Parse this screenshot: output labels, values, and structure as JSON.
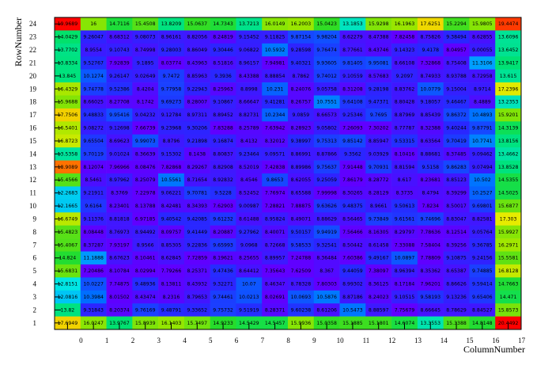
{
  "chart_data": {
    "type": "heatmap",
    "xlabel": "ColumnNumber",
    "ylabel": "RowNumber",
    "x_ticks": [
      "0",
      "1",
      "2",
      "3",
      "4",
      "5",
      "6",
      "7",
      "8",
      "9",
      "10",
      "11",
      "12",
      "13",
      "14",
      "15",
      "16",
      "17"
    ],
    "y_ticks": [
      "1",
      "2",
      "3",
      "4",
      "5",
      "6",
      "7",
      "8",
      "9",
      "10",
      "11",
      "12",
      "13",
      "14",
      "15",
      "16",
      "17",
      "18",
      "19",
      "20",
      "21",
      "22",
      "23",
      "24"
    ],
    "xlim": [
      -0.5,
      17.5
    ],
    "ylim": [
      0.5,
      24.5
    ],
    "color_min": 8.0,
    "color_max": 20.0,
    "rows": [
      {
        "row": 24,
        "values": [
          "19.9689",
          "16",
          "14.7116",
          "15.4508",
          "13.8209",
          "15.0637",
          "14.7343",
          "13.7213",
          "16.0149",
          "16.2003",
          "15.0423",
          "13.1853",
          "15.9298",
          "16.1963",
          "17.6251",
          "15.2294",
          "15.9805",
          "19.4474"
        ]
      },
      {
        "row": 23,
        "values": [
          "14.0429",
          "9.26047",
          "8.68312",
          "9.08073",
          "8.96161",
          "8.82056",
          "8.24819",
          "9.15452",
          "9.11825",
          "9.87154",
          "9.98204",
          "8.62279",
          "8.47388",
          "7.82458",
          "8.75826",
          "9.38494",
          "8.62855",
          "13.6096"
        ]
      },
      {
        "row": 22,
        "values": [
          "13.7702",
          "8.9554",
          "9.10743",
          "8.74998",
          "9.28003",
          "8.86049",
          "9.30446",
          "9.06822",
          "10.5932",
          "9.28598",
          "9.76474",
          "8.77661",
          "8.43746",
          "9.14323",
          "9.4178",
          "8.04957",
          "9.00055",
          "13.6452"
        ]
      },
      {
        "row": 21,
        "values": [
          "13.8334",
          "9.52767",
          "7.92839",
          "9.1895",
          "8.03774",
          "8.43963",
          "8.51816",
          "8.96157",
          "7.94981",
          "9.40321",
          "9.93605",
          "9.81405",
          "9.95081",
          "8.66108",
          "7.32868",
          "8.75408",
          "11.3106",
          "13.9417"
        ]
      },
      {
        "row": 20,
        "values": [
          "13.845",
          "10.1274",
          "9.26147",
          "9.02649",
          "9.7472",
          "8.85963",
          "9.3936",
          "8.43388",
          "8.88854",
          "8.7862",
          "9.74012",
          "9.10559",
          "8.57683",
          "9.2097",
          "8.74933",
          "8.93788",
          "8.72958",
          "13.615"
        ]
      },
      {
        "row": 19,
        "values": [
          "16.4329",
          "9.74778",
          "9.52386",
          "8.4204",
          "9.77958",
          "9.22943",
          "8.25963",
          "8.8998",
          "10.231",
          "8.24076",
          "9.05758",
          "8.31208",
          "9.28198",
          "8.83762",
          "10.0779",
          "9.15004",
          "8.9714",
          "17.2396"
        ]
      },
      {
        "row": 18,
        "values": [
          "15.9688",
          "8.66025",
          "8.27708",
          "8.1742",
          "9.69273",
          "8.28007",
          "9.10867",
          "8.66647",
          "9.41281",
          "8.26757",
          "10.7551",
          "9.64108",
          "9.47371",
          "8.80428",
          "9.18057",
          "9.46467",
          "8.4889",
          "13.2353"
        ]
      },
      {
        "row": 17,
        "values": [
          "17.7506",
          "9.48833",
          "9.95416",
          "9.04232",
          "9.12784",
          "8.97311",
          "8.89452",
          "8.82731",
          "10.2344",
          "9.0859",
          "8.66573",
          "9.25346",
          "9.7695",
          "8.87969",
          "8.85439",
          "9.86372",
          "10.4893",
          "15.9201"
        ]
      },
      {
        "row": 16,
        "values": [
          "16.5401",
          "9.08272",
          "9.12698",
          "7.66739",
          "9.23968",
          "9.30206",
          "7.83288",
          "8.25789",
          "7.63942",
          "8.28923",
          "9.05802",
          "7.26093",
          "7.30202",
          "8.77787",
          "8.32388",
          "9.40244",
          "9.87791",
          "14.3139"
        ]
      },
      {
        "row": 15,
        "values": [
          "16.8723",
          "9.65504",
          "8.69623",
          "9.99073",
          "8.8796",
          "9.21898",
          "9.16874",
          "8.4132",
          "8.32012",
          "9.38997",
          "9.75313",
          "9.85142",
          "8.85947",
          "9.53315",
          "8.63564",
          "9.70419",
          "10.7741",
          "13.8156"
        ]
      },
      {
        "row": 14,
        "values": [
          "13.5358",
          "9.70119",
          "9.01024",
          "8.36639",
          "9.15302",
          "8.1438",
          "8.80837",
          "9.23464",
          "9.09571",
          "8.86991",
          "8.87866",
          "9.3562",
          "9.03929",
          "8.10416",
          "8.88681",
          "8.37485",
          "9.09462",
          "13.4662"
        ]
      },
      {
        "row": 13,
        "values": [
          "18.9089",
          "8.12074",
          "7.96966",
          "8.08476",
          "7.82868",
          "8.29267",
          "8.82908",
          "8.52019",
          "7.42838",
          "8.89986",
          "9.75637",
          "7.91448",
          "9.70931",
          "8.81594",
          "9.5158",
          "9.86283",
          "9.07494",
          "13.8528"
        ]
      },
      {
        "row": 12,
        "values": [
          "15.4566",
          "8.5461",
          "8.97962",
          "8.25079",
          "10.5561",
          "8.71654",
          "8.92832",
          "8.4546",
          "9.8653",
          "8.62055",
          "9.25059",
          "7.86179",
          "8.28772",
          "8.617",
          "8.23681",
          "8.85123",
          "10.502",
          "14.5355"
        ]
      },
      {
        "row": 11,
        "values": [
          "12.2683",
          "9.21911",
          "8.3769",
          "7.22978",
          "9.06221",
          "9.70781",
          "9.5228",
          "8.52452",
          "7.76974",
          "8.65588",
          "7.99998",
          "8.30265",
          "8.28129",
          "8.3735",
          "8.4794",
          "8.39299",
          "10.2527",
          "14.5025"
        ]
      },
      {
        "row": 10,
        "values": [
          "12.1665",
          "9.6164",
          "8.23401",
          "8.13788",
          "8.42481",
          "8.34393",
          "7.62903",
          "9.00987",
          "7.28821",
          "7.88875",
          "9.63626",
          "9.48375",
          "8.9661",
          "9.50613",
          "7.8234",
          "8.50017",
          "9.69801",
          "15.6877"
        ]
      },
      {
        "row": 9,
        "values": [
          "16.6749",
          "9.11376",
          "8.81818",
          "6.97185",
          "9.40542",
          "9.42085",
          "9.61232",
          "8.61488",
          "8.95824",
          "8.49071",
          "8.88629",
          "8.56465",
          "9.73849",
          "9.61561",
          "9.74696",
          "8.83047",
          "8.82581",
          "17.303"
        ]
      },
      {
        "row": 8,
        "values": [
          "15.4823",
          "8.08448",
          "8.76973",
          "8.94492",
          "8.09757",
          "9.41449",
          "8.20887",
          "9.27962",
          "8.40071",
          "9.50157",
          "9.94919",
          "7.56466",
          "8.16305",
          "8.29797",
          "7.78636",
          "8.12514",
          "9.05764",
          "15.9927"
        ]
      },
      {
        "row": 7,
        "values": [
          "15.4067",
          "8.37287",
          "7.93197",
          "8.9566",
          "8.85305",
          "9.22836",
          "9.65993",
          "9.0968",
          "8.72668",
          "9.58533",
          "9.32541",
          "8.50442",
          "8.61458",
          "7.33088",
          "7.58404",
          "8.39256",
          "9.36785",
          "16.2971"
        ]
      },
      {
        "row": 6,
        "values": [
          "14.824",
          "11.1888",
          "8.67623",
          "8.10461",
          "8.62845",
          "7.72859",
          "8.19621",
          "8.25655",
          "8.89957",
          "7.24788",
          "8.36484",
          "7.60386",
          "9.49167",
          "10.0897",
          "7.78809",
          "9.10875",
          "9.24156",
          "15.5581"
        ]
      },
      {
        "row": 5,
        "values": [
          "15.6831",
          "7.20486",
          "8.10784",
          "8.02994",
          "7.79266",
          "8.25371",
          "9.47436",
          "8.64412",
          "7.35643",
          "7.62509",
          "8.367",
          "9.44059",
          "7.38097",
          "8.96394",
          "8.35362",
          "8.65387",
          "9.74885",
          "16.8128"
        ]
      },
      {
        "row": 4,
        "values": [
          "12.8151",
          "10.0227",
          "7.74875",
          "9.48936",
          "8.13811",
          "8.43932",
          "9.32271",
          "10.07",
          "8.46347",
          "8.78328",
          "7.80303",
          "8.99302",
          "8.36125",
          "8.17184",
          "7.96201",
          "8.86626",
          "9.59414",
          "14.7663"
        ]
      },
      {
        "row": 3,
        "values": [
          "12.0816",
          "10.3984",
          "8.01502",
          "8.43474",
          "8.2316",
          "8.79653",
          "9.74461",
          "10.0213",
          "8.02691",
          "10.0693",
          "10.5876",
          "8.87186",
          "8.24023",
          "9.10515",
          "9.58193",
          "9.13236",
          "9.65406",
          "14.471"
        ]
      },
      {
        "row": 2,
        "values": [
          "13.82",
          "9.31843",
          "8.20374",
          "9.76169",
          "9.48791",
          "9.33652",
          "9.75732",
          "9.51919",
          "8.28371",
          "9.60238",
          "8.61206",
          "10.5473",
          "8.88597",
          "7.75679",
          "8.66645",
          "8.78629",
          "8.84527",
          "15.8573"
        ]
      },
      {
        "row": 1,
        "values": [
          "17.6949",
          "16.0247",
          "13.9767",
          "15.8939",
          "16.1403",
          "15.7497",
          "14.9233",
          "14.5429",
          "14.5457",
          "15.9936",
          "15.0358",
          "15.1885",
          "15.1801",
          "14.6074",
          "13.3553",
          "15.3388",
          "14.8148",
          "20.4492"
        ]
      }
    ]
  }
}
